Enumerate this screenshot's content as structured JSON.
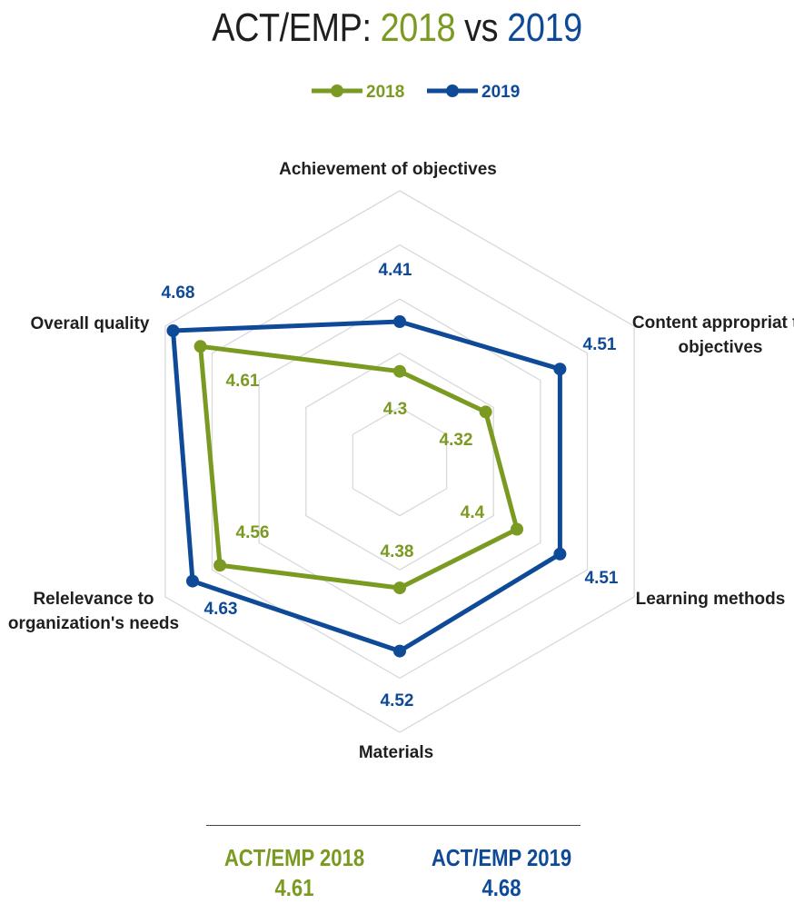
{
  "title": {
    "prefix": "ACT/EMP: ",
    "year_a": "2018",
    "joiner": " vs ",
    "year_b": "2019"
  },
  "colors": {
    "series_2018": "#7a9a21",
    "series_2019": "#0e4a97",
    "grid": "#d9d9d9",
    "text": "#1f1f1f"
  },
  "chart_data": {
    "type": "radar",
    "axes": [
      "Achievement of objectives",
      "Content appropriat to objectives",
      "Learning methods",
      "Materials",
      "Relelevance to organization's needs",
      "Overall quality"
    ],
    "series": [
      {
        "name": "2018",
        "values": [
          4.3,
          4.32,
          4.4,
          4.38,
          4.56,
          4.61
        ]
      },
      {
        "name": "2019",
        "values": [
          4.41,
          4.51,
          4.51,
          4.52,
          4.63,
          4.68
        ]
      }
    ],
    "range": [
      4.1,
      4.7
    ],
    "grid_levels": 5,
    "legend": "top-center"
  },
  "summary": [
    {
      "label": "ACT/EMP 2018",
      "value": "4.61"
    },
    {
      "label": "ACT/EMP 2019",
      "value": "4.68"
    }
  ]
}
